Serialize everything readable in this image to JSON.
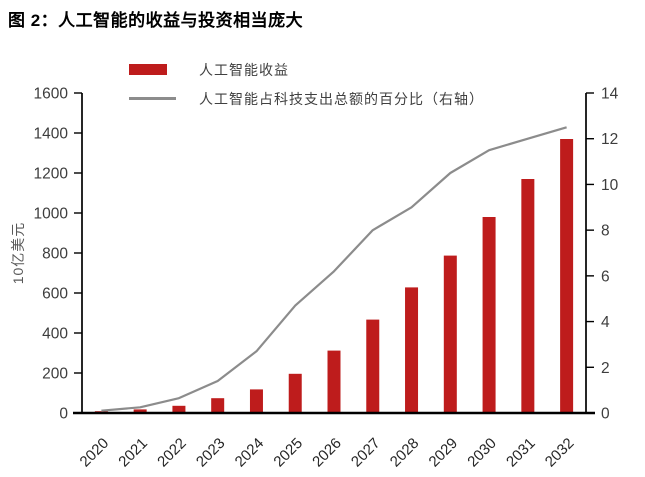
{
  "title": "图 2：人工智能的收益与投资相当庞大",
  "colors": {
    "bar": "#be1c1c",
    "line": "#8c8c8c",
    "axis": "#000000",
    "tick_label": "#3d3d3d",
    "axis_title": "#595959"
  },
  "chart_data": {
    "type": "bar",
    "subtype": "bar-line-combo",
    "title": "图 2：人工智能的收益与投资相当庞大",
    "categories": [
      "2020",
      "2021",
      "2022",
      "2023",
      "2024",
      "2025",
      "2026",
      "2027",
      "2028",
      "2029",
      "2030",
      "2031",
      "2032"
    ],
    "series": [
      {
        "name": "人工智能收益",
        "type": "bar",
        "axis": "left",
        "color": "#be1c1c",
        "values": [
          9,
          18,
          36,
          74,
          118,
          196,
          312,
          467,
          628,
          787,
          980,
          1170,
          1370
        ]
      },
      {
        "name": "人工智能占科技支出总额的百分比（右轴）",
        "type": "line",
        "axis": "right",
        "color": "#8c8c8c",
        "values": [
          0.1,
          0.25,
          0.65,
          1.4,
          2.7,
          4.7,
          6.2,
          8.0,
          9.0,
          10.5,
          11.5,
          12.0,
          12.5
        ]
      }
    ],
    "ylabel_left": "10亿美元",
    "ylabel_right": "",
    "y_axis_left": {
      "min": 0,
      "max": 1600,
      "step": 200
    },
    "y_axis_right": {
      "min": 0,
      "max": 14,
      "step": 2
    },
    "grid": false,
    "legend_position": "top-left",
    "x_tick_rotation": 45
  }
}
